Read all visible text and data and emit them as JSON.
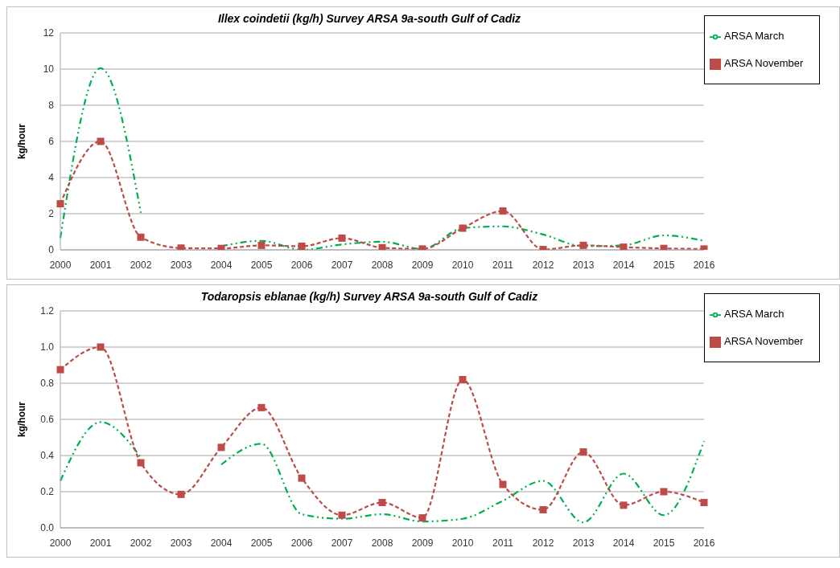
{
  "chart_data": [
    {
      "type": "line",
      "title": "Illex coindetii  (kg/h) Survey ARSA 9a-south Gulf of Cadiz",
      "ylabel": "kg/hour",
      "categories": [
        "2000",
        "2001",
        "2002",
        "2003",
        "2004",
        "2005",
        "2006",
        "2007",
        "2008",
        "2009",
        "2010",
        "2011",
        "2012",
        "2013",
        "2014",
        "2015",
        "2016"
      ],
      "series": [
        {
          "name": "ARSA March",
          "color": "#00b050",
          "line_style": "dashed",
          "marker": "none",
          "values": [
            0.65,
            10.05,
            2.05,
            null,
            0.2,
            0.5,
            0.0,
            0.3,
            0.45,
            0.05,
            1.2,
            1.3,
            0.85,
            0.2,
            0.25,
            0.8,
            0.5
          ]
        },
        {
          "name": "ARSA November",
          "color": "#be4b48",
          "line_style": "dashed",
          "marker": "square",
          "values": [
            2.55,
            6.0,
            0.7,
            0.1,
            0.08,
            0.25,
            0.2,
            0.65,
            0.12,
            0.05,
            1.2,
            2.15,
            0.02,
            0.25,
            0.15,
            0.08,
            0.05
          ]
        }
      ],
      "ylim": [
        0,
        12
      ],
      "yticks": [
        0,
        2,
        4,
        6,
        8,
        10,
        12
      ],
      "grid": "y",
      "legend": "right"
    },
    {
      "type": "line",
      "title": "Todaropsis eblanae (kg/h) Survey ARSA 9a-south Gulf of Cadiz",
      "ylabel": "kg/hour",
      "categories": [
        "2000",
        "2001",
        "2002",
        "2003",
        "2004",
        "2005",
        "2006",
        "2007",
        "2008",
        "2009",
        "2010",
        "2011",
        "2012",
        "2013",
        "2014",
        "2015",
        "2016"
      ],
      "series": [
        {
          "name": "ARSA March",
          "color": "#00b050",
          "line_style": "dashed",
          "marker": "none",
          "values": [
            0.26,
            0.585,
            0.39,
            null,
            0.35,
            0.465,
            0.075,
            0.05,
            0.075,
            0.035,
            0.05,
            0.15,
            0.26,
            0.03,
            0.3,
            0.07,
            0.48
          ]
        },
        {
          "name": "ARSA November",
          "color": "#be4b48",
          "line_style": "dashed",
          "marker": "square",
          "values": [
            0.875,
            1.0,
            0.36,
            0.185,
            0.445,
            0.665,
            0.275,
            0.07,
            0.14,
            0.055,
            0.82,
            0.24,
            0.1,
            0.42,
            0.125,
            0.2,
            0.14
          ]
        }
      ],
      "ylim": [
        0,
        1.2
      ],
      "yticks": [
        {
          "value": 0,
          "label": "0.0"
        },
        0.2,
        0.4,
        0.6,
        0.8,
        {
          "value": 1,
          "label": "1.0"
        },
        1.2
      ],
      "grid": "y",
      "legend": "right"
    }
  ]
}
